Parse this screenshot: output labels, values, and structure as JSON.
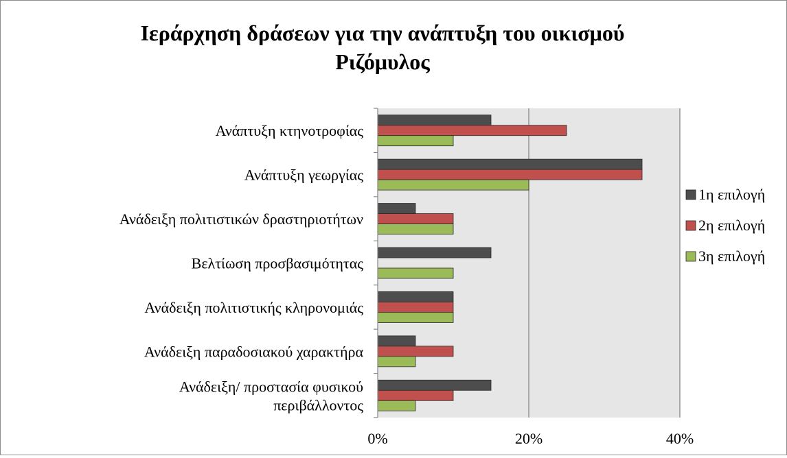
{
  "chart_data": {
    "type": "bar",
    "orientation": "horizontal",
    "title": "Ιεράρχηση δράσεων για την ανάπτυξη του οικισμού Ριζόμυλος",
    "title_lines": [
      "Ιεράρχηση δράσεων για την ανάπτυξη του οικισμού",
      "Ριζόμυλος"
    ],
    "categories": [
      "Ανάπτυξη κτηνοτροφίας",
      "Ανάπτυξη γεωργίας",
      "Ανάδειξη πολιτιστικών δραστηριοτήτων",
      "Βελτίωση προσβασιμότητας",
      "Ανάδειξη πολιτιστικής κληρονομιάς",
      "Ανάδειξη παραδοσιακού χαρακτήρα",
      "Ανάδειξη/ προστασία φυσικού περιβάλλοντος"
    ],
    "category_lines": [
      [
        "Ανάπτυξη κτηνοτροφίας"
      ],
      [
        "Ανάπτυξη γεωργίας"
      ],
      [
        "Ανάδειξη πολιτιστικών δραστηριοτήτων"
      ],
      [
        "Βελτίωση προσβασιμότητας"
      ],
      [
        "Ανάδειξη πολιτιστικής κληρονομιάς"
      ],
      [
        "Ανάδειξη παραδοσιακού χαρακτήρα"
      ],
      [
        "Ανάδειξη/ προστασία φυσικού",
        "περιβάλλοντος"
      ]
    ],
    "series": [
      {
        "name": "1η επιλογή",
        "color": "#4d4d4d",
        "values": [
          15,
          35,
          5,
          15,
          10,
          5,
          15
        ]
      },
      {
        "name": "2η επιλογή",
        "color": "#c0504d",
        "values": [
          25,
          35,
          10,
          0,
          10,
          10,
          10
        ]
      },
      {
        "name": "3η επιλογή",
        "color": "#9bbb59",
        "values": [
          10,
          20,
          10,
          10,
          10,
          5,
          5
        ]
      }
    ],
    "xlim": [
      0,
      40
    ],
    "x_ticks": [
      "0%",
      "20%",
      "40%"
    ],
    "value_unit": "%",
    "grid": true,
    "legend_position": "right"
  }
}
